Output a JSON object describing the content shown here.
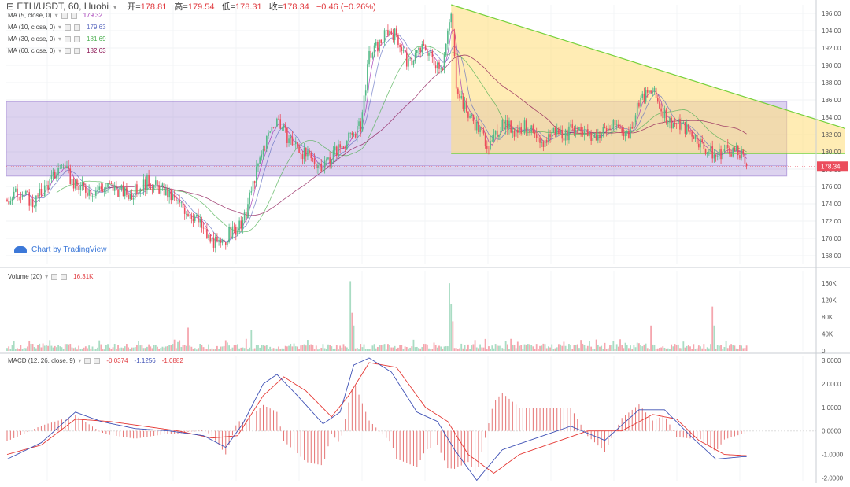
{
  "header": {
    "symbol": "⊟ ETH/USDT, 60, Huobi",
    "dropdown_icon": "chevron-down-icon",
    "open_label": "开=",
    "open": "178.81",
    "high_label": "高=",
    "high": "179.54",
    "low_label": "低=",
    "low": "178.31",
    "close_label": "收=",
    "close": "178.34",
    "change": "−0.46 (−0.26%)"
  },
  "indicators": [
    {
      "label": "MA (5, close, 0)",
      "value": "179.32",
      "color": "#9c27b0"
    },
    {
      "label": "MA (10, close, 0)",
      "value": "179.63",
      "color": "#5c6bc0"
    },
    {
      "label": "MA (30, close, 0)",
      "value": "181.69",
      "color": "#4caf50"
    },
    {
      "label": "MA (60, close, 0)",
      "value": "182.63",
      "color": "#880e4f"
    }
  ],
  "watermark": {
    "text": "Chart by TradingView",
    "icon": "tradingview-cloud-icon"
  },
  "volume_panel": {
    "label": "Volume (20)",
    "value": "16.31K"
  },
  "macd_panel": {
    "label": "MACD (12, 26, close, 9)",
    "v1": "-0.0374",
    "v2": "-1.1256",
    "v3": "-1.0882"
  },
  "colors": {
    "up": "#53b987",
    "down": "#eb4d5c",
    "up_vol": "#a9dcc3",
    "down_vol": "#f5a6ae",
    "zone": "#9575cd",
    "triangle": "#ffe082",
    "trendline": "#76d13a",
    "price_tag": "#eb4d5c"
  },
  "chart_data": [
    {
      "type": "candlestick",
      "title": "ETH/USDT, 60, Huobi",
      "ylim": [
        167,
        197
      ],
      "yticks": [
        "168.00",
        "170.00",
        "172.00",
        "174.00",
        "176.00",
        "178.00",
        "180.00",
        "182.00",
        "184.00",
        "186.00",
        "188.00",
        "190.00",
        "192.00",
        "194.00",
        "196.00"
      ],
      "last_price": "178.34",
      "anchors": [
        [
          0,
          174.5
        ],
        [
          8,
          175.5
        ],
        [
          15,
          174
        ],
        [
          25,
          176.5
        ],
        [
          32,
          178.5
        ],
        [
          40,
          176
        ],
        [
          50,
          175.5
        ],
        [
          60,
          176
        ],
        [
          72,
          175
        ],
        [
          82,
          176.5
        ],
        [
          92,
          175.5
        ],
        [
          100,
          174
        ],
        [
          110,
          172.5
        ],
        [
          118,
          170
        ],
        [
          125,
          169
        ],
        [
          130,
          170.5
        ],
        [
          138,
          171.5
        ],
        [
          145,
          177
        ],
        [
          152,
          181.5
        ],
        [
          158,
          184
        ],
        [
          163,
          182
        ],
        [
          170,
          180.5
        ],
        [
          178,
          179
        ],
        [
          185,
          178.5
        ],
        [
          192,
          180
        ],
        [
          200,
          181.5
        ],
        [
          207,
          183
        ],
        [
          212,
          191
        ],
        [
          218,
          192.5
        ],
        [
          223,
          194
        ],
        [
          228,
          193.5
        ],
        [
          235,
          190
        ],
        [
          240,
          191.5
        ],
        [
          245,
          192
        ],
        [
          250,
          190.5
        ],
        [
          255,
          190
        ],
        [
          258,
          193.5
        ],
        [
          260,
          196
        ],
        [
          263,
          188
        ],
        [
          268,
          185
        ],
        [
          275,
          183
        ],
        [
          283,
          180.5
        ],
        [
          290,
          183.5
        ],
        [
          297,
          182.5
        ],
        [
          305,
          183
        ],
        [
          312,
          180.5
        ],
        [
          320,
          182.5
        ],
        [
          327,
          182
        ],
        [
          335,
          183
        ],
        [
          342,
          181.5
        ],
        [
          350,
          182.5
        ],
        [
          357,
          183
        ],
        [
          364,
          182
        ],
        [
          370,
          186
        ],
        [
          378,
          187
        ],
        [
          383,
          185
        ],
        [
          388,
          183.5
        ],
        [
          395,
          183
        ],
        [
          402,
          182
        ],
        [
          408,
          180.5
        ],
        [
          415,
          179.5
        ],
        [
          422,
          180.5
        ],
        [
          430,
          179.5
        ],
        [
          433,
          178.3
        ]
      ],
      "zones": [
        {
          "label": "range",
          "x": [
            0,
            457
          ],
          "y": [
            177.2,
            185.8
          ]
        }
      ],
      "triangle": {
        "points": [
          [
            260,
            197
          ],
          [
            475,
            182.7
          ],
          [
            475,
            179.8
          ],
          [
            260,
            179.8
          ]
        ]
      },
      "horizontal_lines": [
        178.4,
        179.8
      ],
      "moving_averages": [
        "MA 5",
        "MA 10",
        "MA 30",
        "MA 60"
      ]
    },
    {
      "type": "bar",
      "title": "Volume (20)",
      "ylim": [
        0,
        190000
      ],
      "yticks": [
        "0",
        "40K",
        "80K",
        "120K",
        "160K"
      ],
      "spikes": [
        [
          201,
          165000
        ],
        [
          202,
          90000
        ],
        [
          203,
          60000
        ],
        [
          259,
          160000
        ],
        [
          260,
          110000
        ],
        [
          261,
          70000
        ],
        [
          377,
          60000
        ],
        [
          413,
          105000
        ],
        [
          414,
          60000
        ],
        [
          106,
          55000
        ],
        [
          143,
          50000
        ]
      ]
    },
    {
      "type": "line",
      "title": "MACD (12, 26, close, 9)",
      "ylim": [
        -2.15,
        3.2
      ],
      "yticks": [
        "-2.0000",
        "-1.0000",
        "0.0000",
        "1.0000",
        "2.0000",
        "3.0000"
      ],
      "series": [
        {
          "role": "macd",
          "color": "#3f51b5",
          "anchors": [
            [
              0,
              -1.2
            ],
            [
              20,
              -0.5
            ],
            [
              40,
              0.8
            ],
            [
              55,
              0.4
            ],
            [
              75,
              0.1
            ],
            [
              95,
              0.0
            ],
            [
              115,
              -0.2
            ],
            [
              128,
              -0.7
            ],
            [
              138,
              0.3
            ],
            [
              150,
              2.0
            ],
            [
              158,
              2.4
            ],
            [
              170,
              1.5
            ],
            [
              185,
              0.3
            ],
            [
              195,
              0.8
            ],
            [
              203,
              2.8
            ],
            [
              212,
              3.1
            ],
            [
              225,
              2.5
            ],
            [
              240,
              0.8
            ],
            [
              252,
              0.4
            ],
            [
              262,
              -0.8
            ],
            [
              275,
              -2.1
            ],
            [
              290,
              -0.8
            ],
            [
              310,
              -0.3
            ],
            [
              330,
              0.2
            ],
            [
              350,
              -0.4
            ],
            [
              370,
              0.9
            ],
            [
              385,
              0.9
            ],
            [
              400,
              -0.2
            ],
            [
              415,
              -1.2
            ],
            [
              430,
              -1.1
            ]
          ]
        },
        {
          "role": "signal",
          "color": "#e53935",
          "anchors": [
            [
              0,
              -1.0
            ],
            [
              20,
              -0.6
            ],
            [
              40,
              0.5
            ],
            [
              60,
              0.4
            ],
            [
              80,
              0.2
            ],
            [
              100,
              0.0
            ],
            [
              120,
              -0.3
            ],
            [
              135,
              -0.2
            ],
            [
              150,
              1.5
            ],
            [
              162,
              2.3
            ],
            [
              175,
              1.7
            ],
            [
              190,
              0.6
            ],
            [
              200,
              1.5
            ],
            [
              212,
              2.9
            ],
            [
              228,
              2.7
            ],
            [
              245,
              1.0
            ],
            [
              258,
              0.4
            ],
            [
              270,
              -1.0
            ],
            [
              285,
              -1.8
            ],
            [
              300,
              -1.0
            ],
            [
              320,
              -0.5
            ],
            [
              340,
              0.0
            ],
            [
              360,
              0.0
            ],
            [
              378,
              0.7
            ],
            [
              392,
              0.5
            ],
            [
              405,
              -0.4
            ],
            [
              420,
              -1.0
            ],
            [
              433,
              -1.05
            ]
          ]
        }
      ]
    }
  ]
}
